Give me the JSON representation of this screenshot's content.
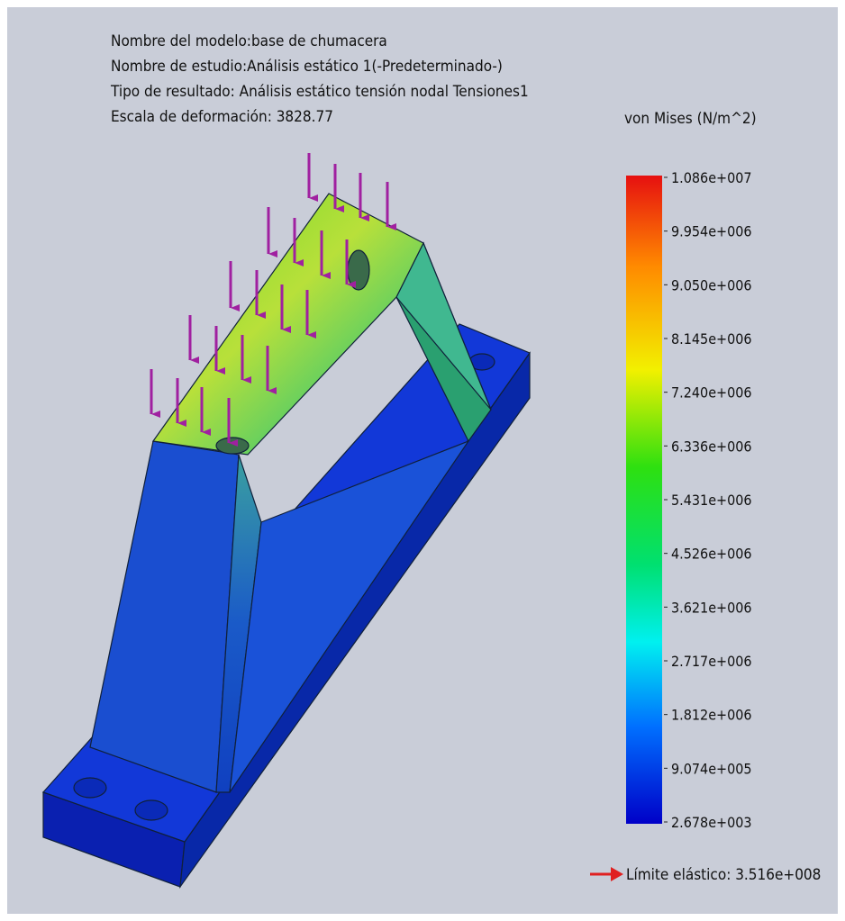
{
  "header": {
    "lines": [
      "Nombre del modelo:base de chumacera",
      "Nombre de estudio:Análisis estático 1(-Predeterminado-)",
      "Tipo de resultado: Análisis estático tensión nodal Tensiones1",
      "Escala de deformación: 3828.77"
    ]
  },
  "legend": {
    "title": "von Mises (N/m^2)",
    "labels": [
      "1.086e+007",
      "9.954e+006",
      "9.050e+006",
      "8.145e+006",
      "7.240e+006",
      "6.336e+006",
      "5.431e+006",
      "4.526e+006",
      "3.621e+006",
      "2.717e+006",
      "1.812e+006",
      "9.074e+005",
      "2.678e+003"
    ]
  },
  "yield_limit": "Límite elástico: 3.516e+008"
}
